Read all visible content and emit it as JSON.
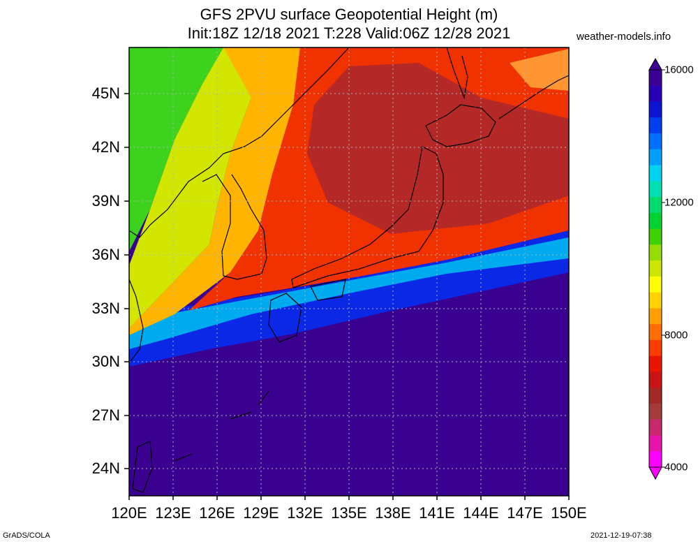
{
  "title_line1": "GFS 2PVU surface Geopotential Height (m)",
  "title_line2": "Init:18Z 12/18 2021 T:228 Valid:06Z 12/28 2021",
  "site": "weather-models.info",
  "lat_labels": [
    "45N",
    "42N",
    "39N",
    "36N",
    "33N",
    "30N",
    "27N",
    "24N"
  ],
  "lon_labels": [
    "120E",
    "123E",
    "126E",
    "129E",
    "132E",
    "135E",
    "138E",
    "141E",
    "144E",
    "147E",
    "150E"
  ],
  "colorbar": {
    "labels": [
      "16000",
      "12000",
      "8000",
      "4000"
    ],
    "colors_top_to_bottom": [
      "#3c0096",
      "#2a00b4",
      "#0a14d2",
      "#0040f0",
      "#0070ff",
      "#00a0ff",
      "#00d2f0",
      "#00e0b4",
      "#00dc6e",
      "#00d232",
      "#40d200",
      "#96dc00",
      "#cde600",
      "#ffff00",
      "#ffd200",
      "#ffa000",
      "#ff6e00",
      "#ff3c00",
      "#eb1400",
      "#c81414",
      "#a52828",
      "#a53c3c",
      "#c8286e",
      "#e614aa",
      "#ff00ff"
    ]
  },
  "footer_left": "GrADS/COLA",
  "footer_right": "2021-12-19-07:38"
}
